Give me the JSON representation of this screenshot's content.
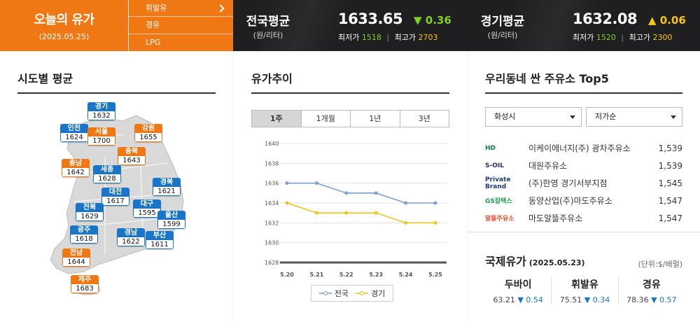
{
  "header": {
    "title": "오늘의 유가",
    "date": "(2025.05.25)",
    "fuel_menu": [
      "휘발유",
      "경유",
      "LPG"
    ],
    "national": {
      "label": "전국평균",
      "unit": "(원/리터)",
      "price": "1633.65",
      "change": "▼ 0.36",
      "min_label": "최저가",
      "min": "1518",
      "max_label": "최고가",
      "max": "2703",
      "change_color": "#7ed321"
    },
    "gyeonggi": {
      "label": "경기평균",
      "unit": "(원/리터)",
      "price": "1632.08",
      "change": "▲ 0.06",
      "min_label": "최저가",
      "min": "1520",
      "max_label": "최고가",
      "max": "2300",
      "change_color": "#f5c518"
    }
  },
  "regional": {
    "title": "시도별 평균",
    "regions": [
      {
        "name": "경기",
        "value": "1632",
        "color": "blue"
      },
      {
        "name": "인천",
        "value": "1624",
        "color": "blue"
      },
      {
        "name": "서울",
        "value": "1700",
        "color": "orange"
      },
      {
        "name": "강원",
        "value": "1655",
        "color": "orange"
      },
      {
        "name": "충북",
        "value": "1643",
        "color": "orange"
      },
      {
        "name": "충남",
        "value": "1642",
        "color": "orange"
      },
      {
        "name": "세종",
        "value": "1628",
        "color": "blue"
      },
      {
        "name": "경북",
        "value": "1621",
        "color": "blue"
      },
      {
        "name": "대전",
        "value": "1617",
        "color": "blue"
      },
      {
        "name": "대구",
        "value": "1595",
        "color": "blue"
      },
      {
        "name": "전북",
        "value": "1629",
        "color": "blue"
      },
      {
        "name": "울산",
        "value": "1599",
        "color": "blue"
      },
      {
        "name": "광주",
        "value": "1618",
        "color": "blue"
      },
      {
        "name": "경남",
        "value": "1622",
        "color": "blue"
      },
      {
        "name": "부산",
        "value": "1611",
        "color": "blue"
      },
      {
        "name": "전남",
        "value": "1644",
        "color": "orange"
      },
      {
        "name": "제주",
        "value": "1683",
        "color": "orange"
      }
    ]
  },
  "trend": {
    "title": "유가추이",
    "tabs": [
      "1주",
      "1개월",
      "1년",
      "3년"
    ],
    "active_tab": "1주"
  },
  "chart_data": {
    "type": "line",
    "x": [
      "5.20",
      "5.21",
      "5.22",
      "5.23",
      "5.24",
      "5.25"
    ],
    "series": [
      {
        "name": "전국",
        "values": [
          1636,
          1636,
          1635,
          1635,
          1634,
          1634
        ],
        "color": "#7b9fd4"
      },
      {
        "name": "경기",
        "values": [
          1634,
          1633,
          1633,
          1633,
          1632,
          1632
        ],
        "color": "#f0c419"
      }
    ],
    "y_ticks": [
      1628,
      1630,
      1632,
      1634,
      1636,
      1638,
      1640
    ],
    "ylim": [
      1628,
      1640
    ],
    "grid": true,
    "legend": "bottom"
  },
  "cheap": {
    "title": "우리동네 싼 주유소 Top5",
    "region_select": "화성시",
    "sort_select": "저가순",
    "stations": [
      {
        "brand": "HD",
        "brand_color": "#0a7a3f",
        "name": "이케이에너지(주) 광차주유소",
        "price": "1,539"
      },
      {
        "brand": "S-OIL",
        "brand_color": "#1d2b6b",
        "name": "대원주유소",
        "price": "1,539"
      },
      {
        "brand": "Private Brand",
        "brand_color": "#1a3e7a",
        "name": "(주)한영 경기서부지점",
        "price": "1,545"
      },
      {
        "brand": "GS칼텍스",
        "brand_color": "#1b9b4a",
        "name": "동양산업(주)마도주유소",
        "price": "1,547"
      },
      {
        "brand": "알뜰주유소",
        "brand_color": "#e64b2a",
        "name": "마도알뜰주유소",
        "price": "1,547"
      }
    ]
  },
  "international": {
    "title": "국제유가",
    "date": "(2025.05.23)",
    "unit": "(단위:$/배럴)",
    "items": [
      {
        "name": "두바이",
        "value": "63.21",
        "change": "▼ 0.54"
      },
      {
        "name": "휘발유",
        "value": "75.51",
        "change": "▼ 0.34"
      },
      {
        "name": "경유",
        "value": "78.36",
        "change": "▼ 0.57"
      }
    ]
  }
}
